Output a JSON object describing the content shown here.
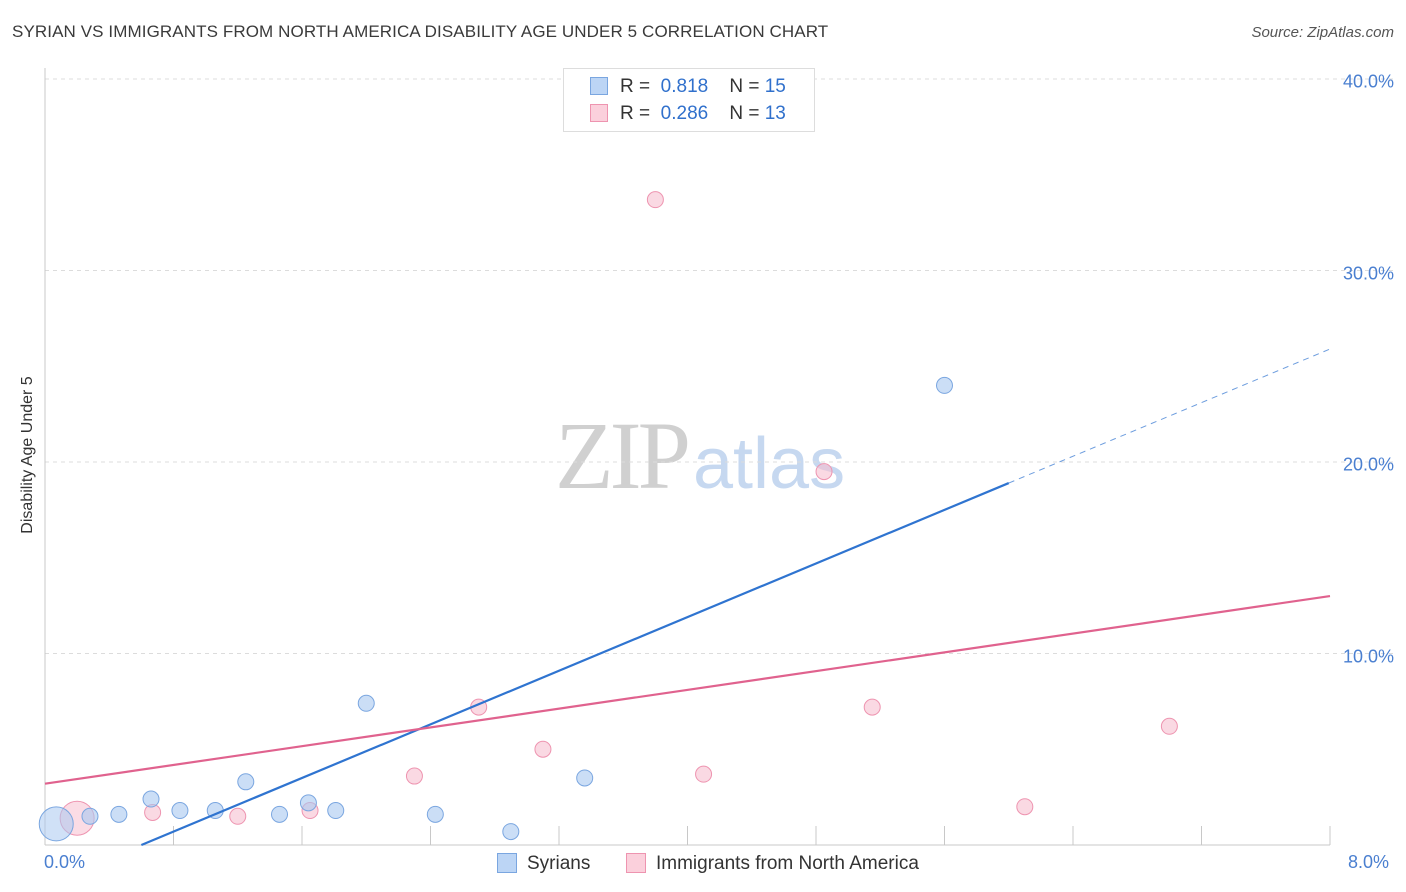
{
  "title": "SYRIAN VS IMMIGRANTS FROM NORTH AMERICA DISABILITY AGE UNDER 5 CORRELATION CHART",
  "source": "Source: ZipAtlas.com",
  "watermark": {
    "zip": "ZIP",
    "atlas": "atlas"
  },
  "legend": {
    "rows": [
      {
        "r_label": "R =",
        "r_value": "0.818",
        "n_label": "N =",
        "n_value": "15"
      },
      {
        "r_label": "R =",
        "r_value": "0.286",
        "n_label": "N =",
        "n_value": "13"
      }
    ]
  },
  "chart_data": {
    "type": "scatter",
    "title": "SYRIAN VS IMMIGRANTS FROM NORTH AMERICA DISABILITY AGE UNDER 5 CORRELATION CHART",
    "xlabel": "",
    "ylabel": "Disability Age Under 5",
    "xlim": [
      0,
      8
    ],
    "ylim": [
      0,
      40
    ],
    "x_tick_labels": [
      "0.0%",
      "8.0%"
    ],
    "y_ticks": [
      10,
      20,
      30,
      40
    ],
    "y_tick_labels": [
      "10.0%",
      "20.0%",
      "30.0%",
      "40.0%"
    ],
    "grid": true,
    "legend_placement": "top-center",
    "series": [
      {
        "name": "Syrians",
        "color": "#a9c8f0",
        "stroke": "#7aa6e0",
        "line_color": "#2f74d0",
        "r": "0.818",
        "n": "15",
        "points": [
          {
            "x": 0.07,
            "y": 1.1,
            "big": true
          },
          {
            "x": 0.28,
            "y": 1.5
          },
          {
            "x": 0.46,
            "y": 1.6
          },
          {
            "x": 0.66,
            "y": 2.4
          },
          {
            "x": 0.84,
            "y": 1.8
          },
          {
            "x": 1.06,
            "y": 1.8
          },
          {
            "x": 1.25,
            "y": 3.3
          },
          {
            "x": 1.46,
            "y": 1.6
          },
          {
            "x": 1.64,
            "y": 2.2
          },
          {
            "x": 1.81,
            "y": 1.8
          },
          {
            "x": 2.0,
            "y": 7.4
          },
          {
            "x": 2.43,
            "y": 1.6
          },
          {
            "x": 2.9,
            "y": 0.7
          },
          {
            "x": 3.36,
            "y": 3.5
          },
          {
            "x": 5.6,
            "y": 24.0
          }
        ],
        "trend": {
          "x0": 0.6,
          "y0": 0.0,
          "x1": 6.0,
          "y1": 18.9,
          "dash_x1": 8.0,
          "dash_y1": 25.9
        }
      },
      {
        "name": "Immigrants from North America",
        "color": "#f7c0d0",
        "stroke": "#ee94b0",
        "line_color": "#e0628e",
        "r": "0.286",
        "n": "13",
        "points": [
          {
            "x": 0.2,
            "y": 1.4,
            "big": true
          },
          {
            "x": 0.67,
            "y": 1.7
          },
          {
            "x": 1.2,
            "y": 1.5
          },
          {
            "x": 1.65,
            "y": 1.8
          },
          {
            "x": 2.3,
            "y": 3.6
          },
          {
            "x": 2.7,
            "y": 7.2
          },
          {
            "x": 3.1,
            "y": 5.0
          },
          {
            "x": 3.8,
            "y": 33.7
          },
          {
            "x": 4.1,
            "y": 3.7
          },
          {
            "x": 4.85,
            "y": 19.5
          },
          {
            "x": 5.15,
            "y": 7.2
          },
          {
            "x": 6.1,
            "y": 2.0
          },
          {
            "x": 7.0,
            "y": 6.2
          }
        ],
        "trend": {
          "x0": 0.0,
          "y0": 3.2,
          "x1": 8.0,
          "y1": 13.0
        }
      }
    ]
  }
}
